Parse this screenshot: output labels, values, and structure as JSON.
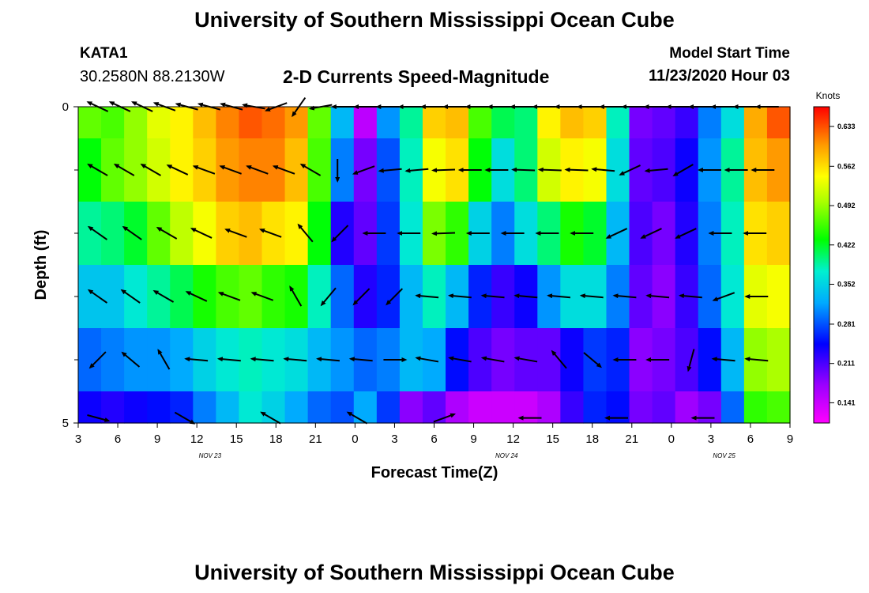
{
  "header": {
    "title": "University of Southern Mississippi Ocean Cube",
    "station_id": "KATA1",
    "coordinates": "30.2580N 88.2130W",
    "model_start_label": "Model Start Time",
    "model_start_value": "11/23/2020 Hour 03"
  },
  "footer": {
    "title": "University of Southern Mississippi Ocean Cube"
  },
  "chart_data": {
    "type": "heatmap",
    "title": "2-D Currents Speed-Magnitude",
    "xlabel": "Forecast Time(Z)",
    "ylabel": "Depth (ft)",
    "colorbar_label": "Knots",
    "colorbar_ticks": [
      "0.633",
      "0.562",
      "0.492",
      "0.422",
      "0.352",
      "0.281",
      "0.211",
      "0.141"
    ],
    "colorbar_range": [
      0.105,
      0.668
    ],
    "x_range_hours": [
      3,
      57
    ],
    "x_ticks": [
      "3",
      "6",
      "9",
      "12",
      "15",
      "18",
      "21",
      "0",
      "3",
      "6",
      "9",
      "12",
      "15",
      "18",
      "21",
      "0",
      "3",
      "6",
      "9"
    ],
    "date_labels": [
      {
        "text": "NOV 23",
        "hour": 13
      },
      {
        "text": "NOV 24",
        "hour": 35.5
      },
      {
        "text": "NOV 25",
        "hour": 52
      }
    ],
    "y_range_ft": [
      0,
      5
    ],
    "y_tick_labels": [
      {
        "text": "0",
        "depth": 0
      },
      {
        "text": "5",
        "depth": 5
      }
    ],
    "y_minor_ticks": [
      1,
      2,
      3,
      4
    ],
    "depth_layers": [
      "0-0.5",
      "0.5-1.5",
      "1.5-2.5",
      "2.5-3.5",
      "3.5-4.5",
      "4.5-5"
    ],
    "speed_knots": [
      [
        0.47,
        0.46,
        0.49,
        0.53,
        0.55,
        0.58,
        0.61,
        0.63,
        0.62,
        0.6,
        0.47,
        0.33,
        0.15,
        0.31,
        0.39,
        0.57,
        0.58,
        0.46,
        0.41,
        0.4,
        0.55,
        0.58,
        0.57,
        0.38,
        0.19,
        0.2,
        0.22,
        0.3,
        0.36,
        0.59,
        0.63
      ],
      [
        0.43,
        0.47,
        0.49,
        0.52,
        0.55,
        0.57,
        0.6,
        0.61,
        0.61,
        0.58,
        0.46,
        0.3,
        0.19,
        0.28,
        0.38,
        0.54,
        0.56,
        0.43,
        0.36,
        0.4,
        0.52,
        0.55,
        0.54,
        0.36,
        0.2,
        0.21,
        0.24,
        0.31,
        0.39,
        0.58,
        0.6
      ],
      [
        0.39,
        0.4,
        0.42,
        0.47,
        0.51,
        0.54,
        0.57,
        0.58,
        0.56,
        0.55,
        0.43,
        0.23,
        0.2,
        0.27,
        0.37,
        0.48,
        0.45,
        0.35,
        0.3,
        0.36,
        0.4,
        0.44,
        0.42,
        0.33,
        0.21,
        0.19,
        0.23,
        0.3,
        0.38,
        0.56,
        0.57
      ],
      [
        0.34,
        0.34,
        0.37,
        0.39,
        0.41,
        0.44,
        0.46,
        0.47,
        0.45,
        0.44,
        0.38,
        0.29,
        0.23,
        0.26,
        0.33,
        0.38,
        0.33,
        0.26,
        0.22,
        0.24,
        0.31,
        0.36,
        0.36,
        0.3,
        0.2,
        0.18,
        0.22,
        0.29,
        0.37,
        0.53,
        0.54
      ],
      [
        0.29,
        0.3,
        0.31,
        0.31,
        0.32,
        0.35,
        0.37,
        0.38,
        0.37,
        0.36,
        0.33,
        0.31,
        0.29,
        0.3,
        0.33,
        0.32,
        0.25,
        0.21,
        0.19,
        0.2,
        0.2,
        0.24,
        0.27,
        0.26,
        0.18,
        0.19,
        0.21,
        0.25,
        0.33,
        0.49,
        0.5
      ],
      [
        0.24,
        0.23,
        0.24,
        0.25,
        0.26,
        0.3,
        0.33,
        0.37,
        0.35,
        0.32,
        0.29,
        0.28,
        0.32,
        0.27,
        0.18,
        0.2,
        0.16,
        0.14,
        0.14,
        0.14,
        0.16,
        0.22,
        0.26,
        0.25,
        0.19,
        0.2,
        0.17,
        0.19,
        0.29,
        0.45,
        0.46
      ]
    ],
    "vector_rows": [
      {
        "depth": 0,
        "dirs": [
          205,
          205,
          205,
          200,
          195,
          195,
          195,
          190,
          160,
          125,
          170,
          180,
          180,
          180,
          180,
          180,
          180,
          180,
          180,
          180,
          180,
          180,
          180,
          180,
          180,
          180,
          180,
          180,
          180,
          180,
          180
        ]
      },
      {
        "depth": 1,
        "dirs": [
          210,
          210,
          210,
          205,
          200,
          200,
          200,
          200,
          210,
          90,
          160,
          175,
          175,
          178,
          180,
          180,
          182,
          182,
          182,
          185,
          155,
          175,
          150,
          180,
          180,
          180
        ]
      },
      {
        "depth": 2,
        "dirs": [
          215,
          215,
          210,
          205,
          200,
          200,
          230,
          135,
          180,
          180,
          178,
          180,
          180,
          180,
          180,
          155,
          155,
          155,
          180,
          180
        ]
      },
      {
        "depth": 3,
        "dirs": [
          215,
          215,
          210,
          205,
          200,
          200,
          240,
          130,
          135,
          135,
          185,
          185,
          185,
          185,
          185,
          185,
          185,
          185,
          185,
          160,
          180
        ]
      },
      {
        "depth": 4,
        "dirs": [
          135,
          220,
          240,
          185,
          185,
          185,
          185,
          185,
          185,
          0,
          190,
          190,
          190,
          190,
          230,
          40,
          180,
          180,
          105,
          185,
          185
        ]
      },
      {
        "depth": 4.92,
        "dirs": [
          15,
          30,
          210,
          210,
          340,
          180,
          180,
          180
        ]
      }
    ]
  }
}
